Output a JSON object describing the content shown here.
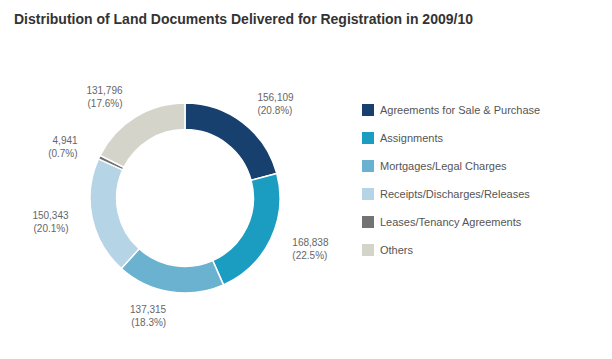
{
  "chart_data": {
    "type": "donut",
    "title": "Distribution of Land Documents Delivered for Registration in 2009/10",
    "categories": [
      "Agreements for Sale & Purchase",
      "Assignments",
      "Mortgages/Legal Charges",
      "Receipts/Discharges/Releases",
      "Leases/Tenancy Agreements",
      "Others"
    ],
    "values": [
      156109,
      168838,
      137315,
      150343,
      4941,
      131796
    ],
    "value_labels": [
      "156,109",
      "168,838",
      "137,315",
      "150,343",
      "4,941",
      "131,796"
    ],
    "percentages": [
      20.8,
      22.5,
      18.3,
      20.1,
      0.7,
      17.6
    ],
    "percentage_labels": [
      "(20.8%)",
      "(22.5%)",
      "(18.3%)",
      "(20.1%)",
      "(0.7%)",
      "(17.6%)"
    ],
    "colors": [
      "#17406e",
      "#1b9dc2",
      "#6ab2d0",
      "#b5d4e6",
      "#737373",
      "#d5d4ca"
    ],
    "data_labels": true,
    "legend": "right"
  }
}
